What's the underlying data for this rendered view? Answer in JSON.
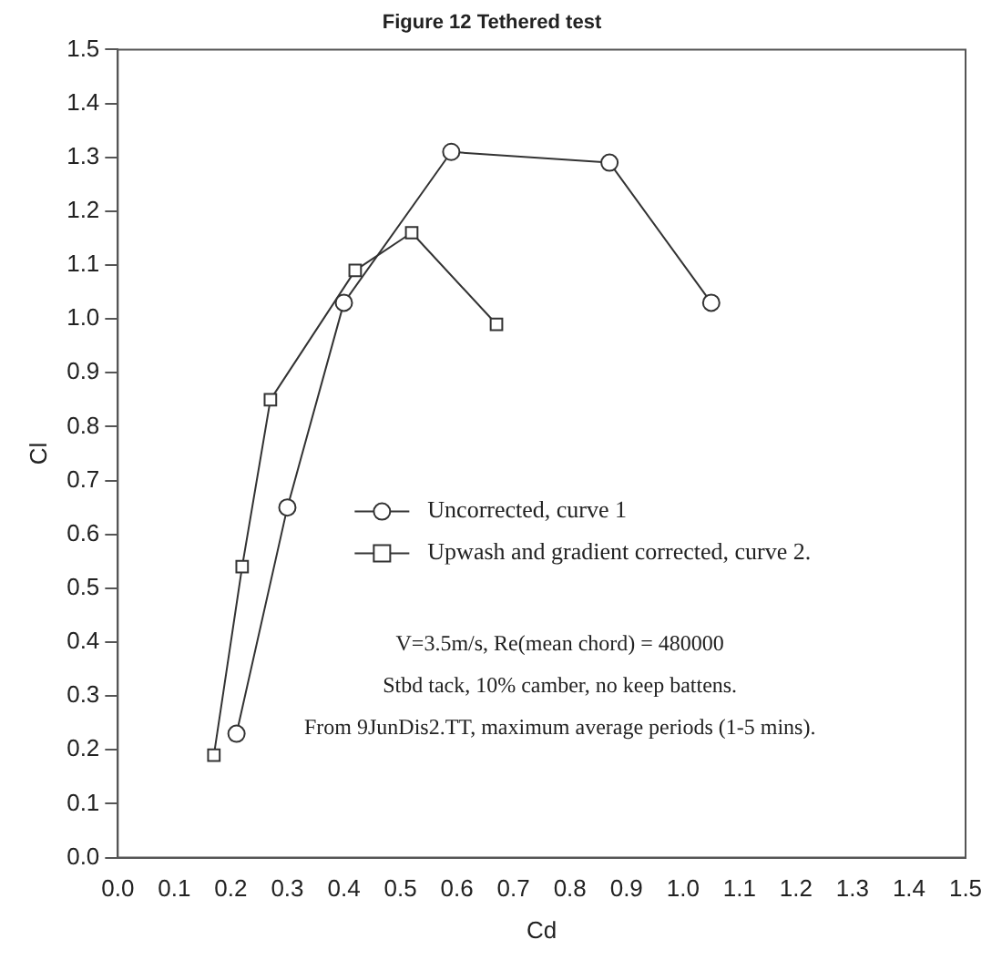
{
  "chart_data": {
    "type": "line",
    "title": "Figure 12 Tethered test",
    "xlabel": "Cd",
    "ylabel": "Cl",
    "xlim": [
      0,
      1.5
    ],
    "xticks": [
      {
        "value": 0,
        "label": "0.0"
      },
      0.1,
      0.2,
      0.3,
      0.4,
      0.5,
      0.6,
      0.7,
      0.8,
      0.9,
      {
        "value": 1,
        "label": "1.0"
      },
      1.1,
      1.2,
      1.3,
      1.4,
      1.5
    ],
    "ylim": [
      0,
      1.5
    ],
    "yticks": [
      {
        "value": 0,
        "label": "0.0"
      },
      0.1,
      0.2,
      0.3,
      0.4,
      0.5,
      0.6,
      0.7,
      0.8,
      0.9,
      {
        "value": 1,
        "label": "1.0"
      },
      1.1,
      1.2,
      1.3,
      1.4,
      1.5
    ],
    "grid": false,
    "legend": "bottom",
    "series": [
      {
        "name": "Uncorrected, curve 1",
        "color": "#333333",
        "marker": "circle",
        "x": [
          0.21,
          0.3,
          0.4,
          0.59,
          0.87,
          1.05
        ],
        "values": [
          0.23,
          0.65,
          1.03,
          1.31,
          1.29,
          1.03
        ]
      },
      {
        "name": "Upwash and gradient corrected, curve 2.",
        "color": "#333333",
        "marker": "square",
        "x": [
          0.17,
          0.22,
          0.27,
          0.42,
          0.52,
          0.67
        ],
        "values": [
          0.19,
          0.54,
          0.85,
          1.09,
          1.16,
          0.99
        ]
      }
    ],
    "annotations": [
      "V=3.5m/s, Re(mean chord) = 480000",
      "Stbd tack, 10% camber, no keep battens.",
      "From 9JunDis2.TT, maximum average periods (1-5 mins)."
    ]
  }
}
